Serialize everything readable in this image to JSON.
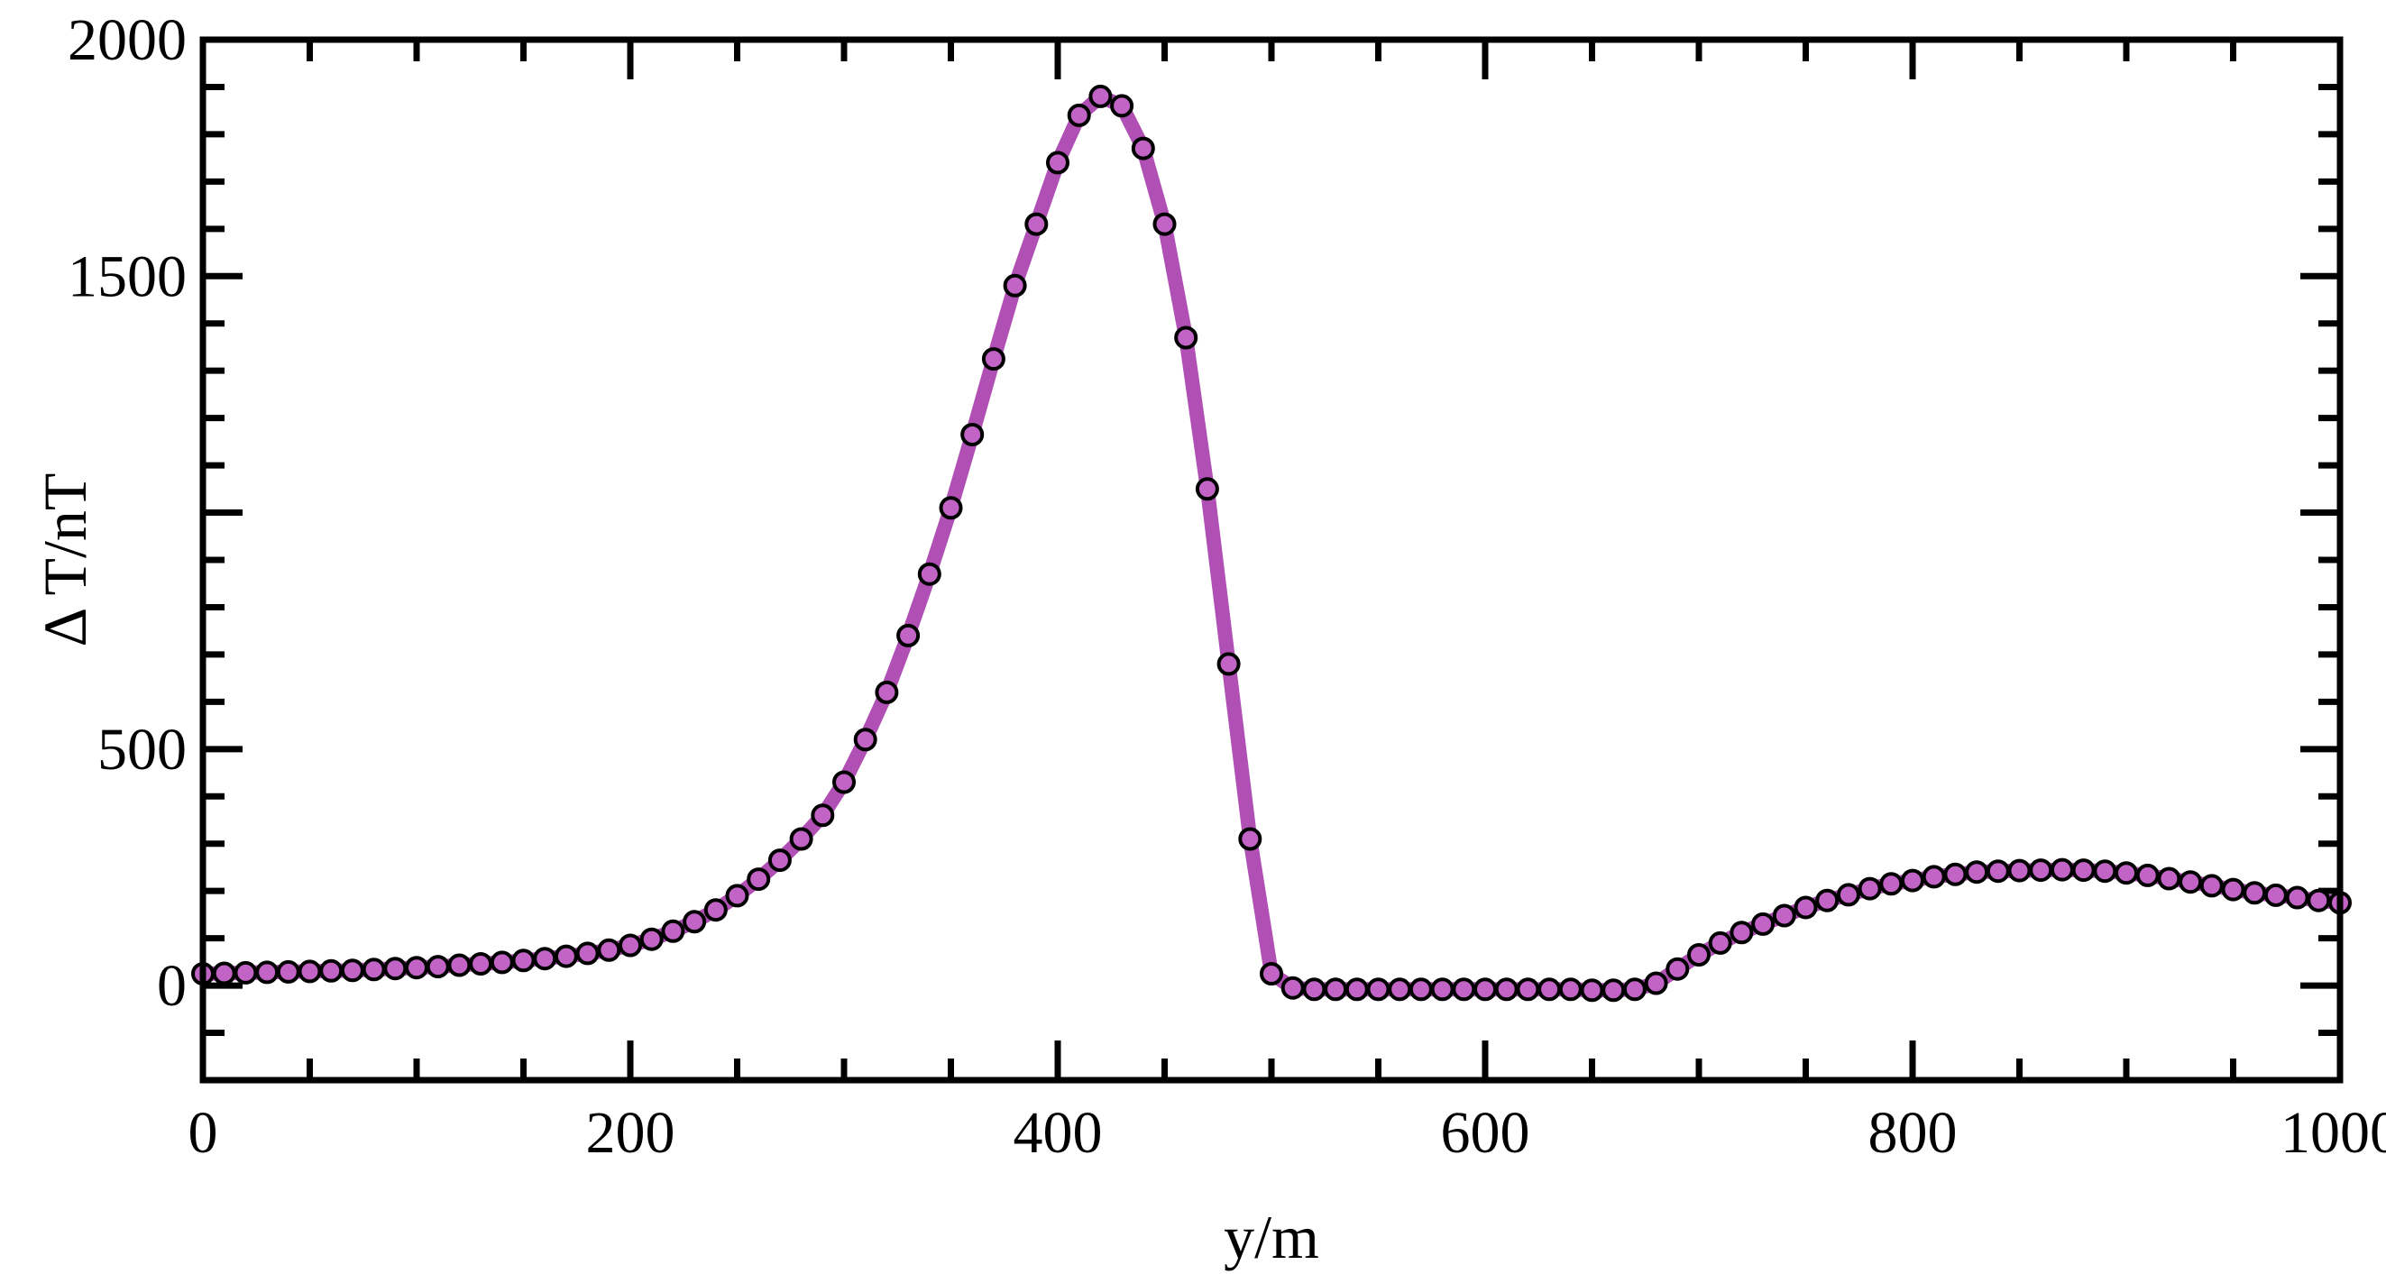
{
  "chart_data": {
    "type": "line",
    "xlabel": "y/m",
    "ylabel": "Δ T/nT",
    "xlim": [
      0,
      1000
    ],
    "ylim": [
      -200,
      2000
    ],
    "xticks": [
      0,
      200,
      400,
      600,
      800,
      1000
    ],
    "xtick_labels": [
      "0",
      "200",
      "400",
      "600",
      "800",
      "1000"
    ],
    "yticks": [
      0,
      500,
      1500,
      2000
    ],
    "ytick_labels": [
      "0",
      "500",
      "1500",
      "2000"
    ],
    "grid": false,
    "legend": "none",
    "colors": {
      "line": "#b04fb4",
      "marker_fill": "#c264c6",
      "marker_edge": "#000000",
      "axes": "#000000"
    },
    "series": [
      {
        "style": "line+markers",
        "x": [
          0,
          10,
          20,
          30,
          40,
          50,
          60,
          70,
          80,
          90,
          100,
          110,
          120,
          130,
          140,
          150,
          160,
          170,
          180,
          190,
          200,
          210,
          220,
          230,
          240,
          250,
          260,
          270,
          280,
          290,
          300,
          310,
          320,
          330,
          340,
          350,
          360,
          370,
          380,
          390,
          400,
          410,
          420,
          430,
          440,
          450,
          460,
          470,
          480,
          490,
          500,
          510,
          520,
          530,
          540,
          550,
          560,
          570,
          580,
          590,
          600,
          610,
          620,
          630,
          640,
          650,
          660,
          670,
          680,
          690,
          700,
          710,
          720,
          730,
          740,
          750,
          760,
          770,
          780,
          790,
          800,
          810,
          820,
          830,
          840,
          850,
          860,
          870,
          880,
          890,
          900,
          910,
          920,
          930,
          940,
          950,
          960,
          970,
          980,
          990,
          1000
        ],
        "y": [
          25,
          26,
          27,
          28,
          29,
          30,
          31,
          32,
          34,
          36,
          38,
          40,
          43,
          46,
          49,
          53,
          57,
          62,
          68,
          75,
          85,
          98,
          115,
          135,
          160,
          190,
          225,
          265,
          310,
          360,
          430,
          520,
          620,
          740,
          870,
          1010,
          1165,
          1325,
          1480,
          1610,
          1740,
          1840,
          1880,
          1860,
          1770,
          1610,
          1370,
          1050,
          680,
          310,
          25,
          -5,
          -8,
          -8,
          -8,
          -8,
          -8,
          -8,
          -8,
          -8,
          -8,
          -8,
          -8,
          -8,
          -8,
          -10,
          -10,
          -8,
          5,
          35,
          65,
          90,
          112,
          130,
          148,
          165,
          180,
          192,
          205,
          215,
          222,
          230,
          235,
          240,
          242,
          243,
          244,
          245,
          244,
          242,
          238,
          233,
          226,
          219,
          211,
          203,
          196,
          191,
          186,
          180,
          175
        ]
      }
    ]
  }
}
